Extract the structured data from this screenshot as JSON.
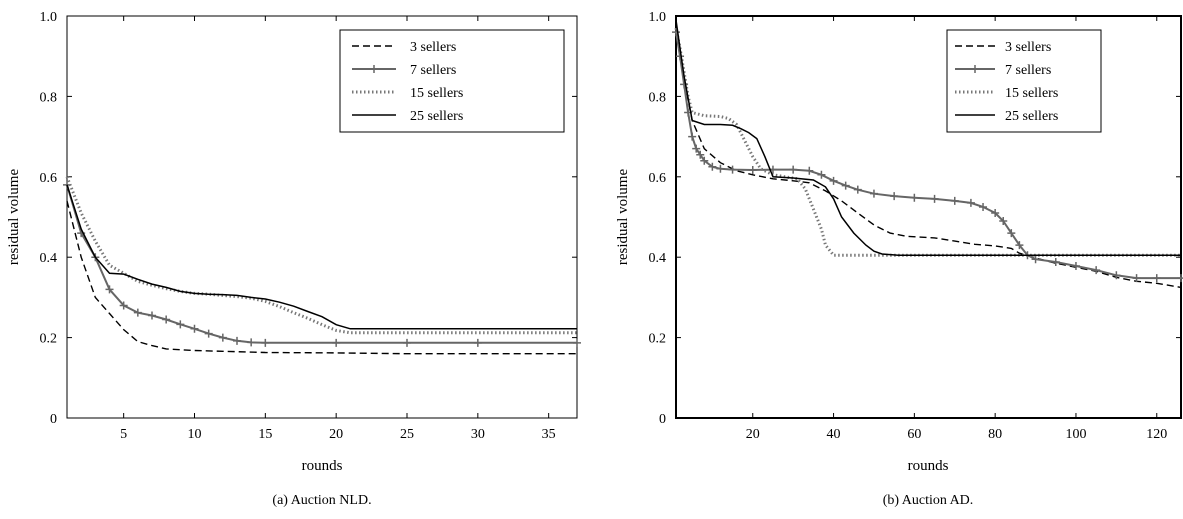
{
  "charts": [
    {
      "id": "a",
      "caption": "(a) Auction NLD.",
      "xlabel": "rounds",
      "ylabel": "residual volume",
      "xlim": [
        1,
        37
      ],
      "ylim": [
        0,
        1
      ],
      "xticks": [
        5,
        10,
        15,
        20,
        25,
        30,
        35
      ],
      "yticks": [
        0,
        0.2,
        0.4,
        0.6,
        0.8,
        1.0
      ],
      "ytick_labels": [
        "0",
        "0.2",
        "0.4",
        "0.6",
        "0.8",
        "1.0"
      ],
      "legend": [
        "3 sellers",
        "7 sellers",
        "15 sellers",
        "25 sellers"
      ]
    },
    {
      "id": "b",
      "caption": "(b) Auction AD.",
      "xlabel": "rounds",
      "ylabel": "residual volume",
      "xlim": [
        1,
        126
      ],
      "ylim": [
        0,
        1
      ],
      "xticks": [
        20,
        40,
        60,
        80,
        100,
        120
      ],
      "yticks": [
        0,
        0.2,
        0.4,
        0.6,
        0.8,
        1.0
      ],
      "ytick_labels": [
        "0",
        "0.2",
        "0.4",
        "0.6",
        "0.8",
        "1.0"
      ],
      "legend": [
        "3 sellers",
        "7 sellers",
        "15 sellers",
        "25 sellers"
      ]
    }
  ],
  "chart_data": [
    {
      "type": "line",
      "title": "",
      "caption": "(a) Auction NLD.",
      "xlabel": "rounds",
      "ylabel": "residual volume",
      "xlim": [
        1,
        37
      ],
      "ylim": [
        0,
        1
      ],
      "grid": false,
      "legend_position": "top-right",
      "series": [
        {
          "name": "3 sellers",
          "style": "dashed",
          "color": "#000000",
          "points": [
            [
              1,
              0.54
            ],
            [
              2,
              0.4
            ],
            [
              3,
              0.3
            ],
            [
              4,
              0.26
            ],
            [
              5,
              0.22
            ],
            [
              6,
              0.19
            ],
            [
              7,
              0.18
            ],
            [
              8,
              0.172
            ],
            [
              10,
              0.168
            ],
            [
              12,
              0.166
            ],
            [
              15,
              0.163
            ],
            [
              20,
              0.162
            ],
            [
              25,
              0.16
            ],
            [
              30,
              0.16
            ],
            [
              37,
              0.16
            ]
          ]
        },
        {
          "name": "7 sellers",
          "style": "solid-plus",
          "color": "#666666",
          "points": [
            [
              1,
              0.58
            ],
            [
              2,
              0.46
            ],
            [
              3,
              0.4
            ],
            [
              4,
              0.32
            ],
            [
              5,
              0.28
            ],
            [
              6,
              0.262
            ],
            [
              7,
              0.255
            ],
            [
              8,
              0.245
            ],
            [
              9,
              0.233
            ],
            [
              10,
              0.222
            ],
            [
              11,
              0.21
            ],
            [
              12,
              0.2
            ],
            [
              13,
              0.192
            ],
            [
              14,
              0.188
            ],
            [
              15,
              0.187
            ],
            [
              20,
              0.187
            ],
            [
              25,
              0.187
            ],
            [
              30,
              0.187
            ],
            [
              37,
              0.187
            ]
          ]
        },
        {
          "name": "15 sellers",
          "style": "dotted",
          "color": "#777777",
          "points": [
            [
              1,
              0.6
            ],
            [
              2,
              0.51
            ],
            [
              3,
              0.44
            ],
            [
              4,
              0.38
            ],
            [
              5,
              0.36
            ],
            [
              6,
              0.34
            ],
            [
              7,
              0.33
            ],
            [
              8,
              0.322
            ],
            [
              9,
              0.315
            ],
            [
              10,
              0.31
            ],
            [
              11,
              0.308
            ],
            [
              12,
              0.305
            ],
            [
              13,
              0.302
            ],
            [
              14,
              0.298
            ],
            [
              15,
              0.29
            ],
            [
              16,
              0.277
            ],
            [
              17,
              0.262
            ],
            [
              18,
              0.248
            ],
            [
              19,
              0.232
            ],
            [
              20,
              0.218
            ],
            [
              21,
              0.212
            ],
            [
              25,
              0.212
            ],
            [
              30,
              0.212
            ],
            [
              37,
              0.212
            ]
          ]
        },
        {
          "name": "25 sellers",
          "style": "solid",
          "color": "#000000",
          "points": [
            [
              1,
              0.58
            ],
            [
              2,
              0.47
            ],
            [
              3,
              0.4
            ],
            [
              4,
              0.36
            ],
            [
              5,
              0.358
            ],
            [
              6,
              0.345
            ],
            [
              7,
              0.333
            ],
            [
              8,
              0.325
            ],
            [
              9,
              0.315
            ],
            [
              10,
              0.31
            ],
            [
              11,
              0.308
            ],
            [
              12,
              0.307
            ],
            [
              13,
              0.305
            ],
            [
              14,
              0.3
            ],
            [
              15,
              0.296
            ],
            [
              16,
              0.288
            ],
            [
              17,
              0.278
            ],
            [
              18,
              0.265
            ],
            [
              19,
              0.252
            ],
            [
              20,
              0.232
            ],
            [
              21,
              0.222
            ],
            [
              25,
              0.222
            ],
            [
              30,
              0.222
            ],
            [
              37,
              0.222
            ]
          ]
        }
      ]
    },
    {
      "type": "line",
      "title": "",
      "caption": "(b) Auction AD.",
      "xlabel": "rounds",
      "ylabel": "residual volume",
      "xlim": [
        1,
        126
      ],
      "ylim": [
        0,
        1
      ],
      "grid": false,
      "legend_position": "top-right",
      "series": [
        {
          "name": "3 sellers",
          "style": "dashed",
          "color": "#000000",
          "points": [
            [
              1,
              0.97
            ],
            [
              3,
              0.84
            ],
            [
              5,
              0.74
            ],
            [
              8,
              0.67
            ],
            [
              12,
              0.635
            ],
            [
              16,
              0.615
            ],
            [
              20,
              0.605
            ],
            [
              25,
              0.595
            ],
            [
              30,
              0.59
            ],
            [
              34,
              0.585
            ],
            [
              38,
              0.565
            ],
            [
              42,
              0.54
            ],
            [
              46,
              0.51
            ],
            [
              50,
              0.48
            ],
            [
              54,
              0.46
            ],
            [
              58,
              0.452
            ],
            [
              65,
              0.448
            ],
            [
              70,
              0.44
            ],
            [
              75,
              0.432
            ],
            [
              80,
              0.428
            ],
            [
              84,
              0.422
            ],
            [
              86,
              0.41
            ],
            [
              90,
              0.398
            ],
            [
              95,
              0.385
            ],
            [
              100,
              0.375
            ],
            [
              105,
              0.365
            ],
            [
              110,
              0.35
            ],
            [
              115,
              0.34
            ],
            [
              120,
              0.335
            ],
            [
              126,
              0.325
            ]
          ]
        },
        {
          "name": "7 sellers",
          "style": "solid-plus",
          "color": "#666666",
          "points": [
            [
              1,
              0.96
            ],
            [
              2,
              0.9
            ],
            [
              3,
              0.83
            ],
            [
              4,
              0.76
            ],
            [
              5,
              0.7
            ],
            [
              6,
              0.67
            ],
            [
              7,
              0.655
            ],
            [
              8,
              0.64
            ],
            [
              10,
              0.625
            ],
            [
              12,
              0.62
            ],
            [
              15,
              0.618
            ],
            [
              20,
              0.617
            ],
            [
              25,
              0.618
            ],
            [
              30,
              0.618
            ],
            [
              34,
              0.615
            ],
            [
              37,
              0.605
            ],
            [
              40,
              0.59
            ],
            [
              43,
              0.578
            ],
            [
              46,
              0.568
            ],
            [
              50,
              0.558
            ],
            [
              55,
              0.552
            ],
            [
              60,
              0.548
            ],
            [
              65,
              0.545
            ],
            [
              70,
              0.54
            ],
            [
              74,
              0.535
            ],
            [
              77,
              0.525
            ],
            [
              80,
              0.51
            ],
            [
              82,
              0.49
            ],
            [
              84,
              0.46
            ],
            [
              86,
              0.43
            ],
            [
              88,
              0.405
            ],
            [
              90,
              0.395
            ],
            [
              95,
              0.388
            ],
            [
              100,
              0.378
            ],
            [
              105,
              0.368
            ],
            [
              110,
              0.355
            ],
            [
              115,
              0.348
            ],
            [
              120,
              0.348
            ],
            [
              126,
              0.348
            ]
          ]
        },
        {
          "name": "15 sellers",
          "style": "dotted",
          "color": "#777777",
          "points": [
            [
              1,
              0.97
            ],
            [
              2,
              0.92
            ],
            [
              3,
              0.86
            ],
            [
              4,
              0.8
            ],
            [
              5,
              0.76
            ],
            [
              8,
              0.752
            ],
            [
              12,
              0.75
            ],
            [
              14,
              0.745
            ],
            [
              16,
              0.73
            ],
            [
              18,
              0.69
            ],
            [
              20,
              0.65
            ],
            [
              22,
              0.62
            ],
            [
              25,
              0.605
            ],
            [
              28,
              0.6
            ],
            [
              31,
              0.595
            ],
            [
              33,
              0.57
            ],
            [
              35,
              0.52
            ],
            [
              37,
              0.47
            ],
            [
              38,
              0.43
            ],
            [
              40,
              0.405
            ],
            [
              45,
              0.405
            ],
            [
              55,
              0.405
            ],
            [
              70,
              0.405
            ],
            [
              90,
              0.405
            ],
            [
              110,
              0.405
            ],
            [
              126,
              0.405
            ]
          ]
        },
        {
          "name": "25 sellers",
          "style": "solid",
          "color": "#000000",
          "points": [
            [
              1,
              0.99
            ],
            [
              2,
              0.92
            ],
            [
              3,
              0.85
            ],
            [
              5,
              0.74
            ],
            [
              8,
              0.73
            ],
            [
              12,
              0.73
            ],
            [
              15,
              0.728
            ],
            [
              17,
              0.72
            ],
            [
              19,
              0.71
            ],
            [
              21,
              0.695
            ],
            [
              23,
              0.65
            ],
            [
              25,
              0.6
            ],
            [
              30,
              0.597
            ],
            [
              35,
              0.592
            ],
            [
              38,
              0.575
            ],
            [
              40,
              0.545
            ],
            [
              42,
              0.5
            ],
            [
              45,
              0.46
            ],
            [
              48,
              0.43
            ],
            [
              50,
              0.415
            ],
            [
              52,
              0.408
            ],
            [
              56,
              0.405
            ],
            [
              70,
              0.405
            ],
            [
              90,
              0.405
            ],
            [
              110,
              0.405
            ],
            [
              126,
              0.405
            ]
          ]
        }
      ]
    }
  ]
}
